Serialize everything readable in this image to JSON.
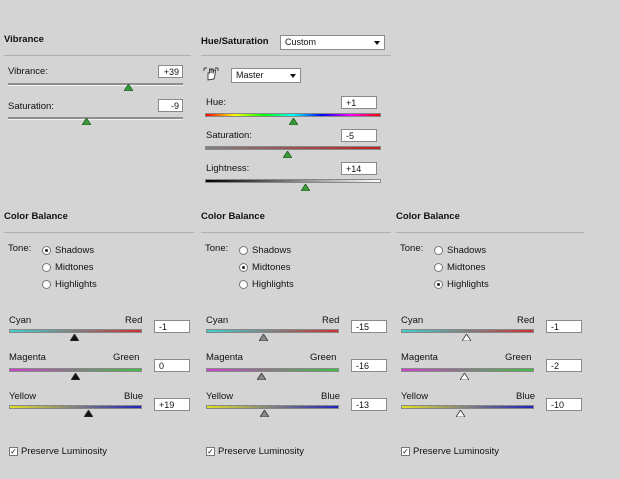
{
  "vibrance": {
    "title": "Vibrance",
    "vibrance_label": "Vibrance:",
    "vibrance_value": "+39",
    "vibrance_level": 0.69,
    "saturation_label": "Saturation:",
    "saturation_value": "-9",
    "saturation_level": 0.45
  },
  "hue_sat": {
    "title": "Hue/Saturation",
    "preset": "Custom",
    "channel": "Master",
    "hue_label": "Hue:",
    "hue_value": "+1",
    "hue_level": 0.5,
    "saturation_label": "Saturation:",
    "saturation_value": "-5",
    "saturation_level": 0.47,
    "lightness_label": "Lightness:",
    "lightness_value": "+14",
    "lightness_level": 0.57
  },
  "color_balance": [
    {
      "title": "Color Balance",
      "tone_label": "Tone:",
      "tones": [
        "Shadows",
        "Midtones",
        "Highlights"
      ],
      "selected_tone": "Shadows",
      "cyan": "Cyan",
      "red": "Red",
      "cr_value": "-1",
      "cr_level": 0.49,
      "magenta": "Magenta",
      "green": "Green",
      "mg_value": "0",
      "mg_level": 0.5,
      "yellow": "Yellow",
      "blue": "Blue",
      "yb_value": "+19",
      "yb_level": 0.6,
      "preserve": "Preserve Luminosity",
      "preserve_checked": true,
      "thumb_color": "#111111"
    },
    {
      "title": "Color Balance",
      "tone_label": "Tone:",
      "tones": [
        "Shadows",
        "Midtones",
        "Highlights"
      ],
      "selected_tone": "Midtones",
      "cyan": "Cyan",
      "red": "Red",
      "cr_value": "-15",
      "cr_level": 0.43,
      "magenta": "Magenta",
      "green": "Green",
      "mg_value": "-16",
      "mg_level": 0.42,
      "yellow": "Yellow",
      "blue": "Blue",
      "yb_value": "-13",
      "yb_level": 0.44,
      "preserve": "Preserve Luminosity",
      "preserve_checked": true,
      "thumb_color": "#8a8a8a"
    },
    {
      "title": "Color Balance",
      "tone_label": "Tone:",
      "tones": [
        "Shadows",
        "Midtones",
        "Highlights"
      ],
      "selected_tone": "Highlights",
      "cyan": "Cyan",
      "red": "Red",
      "cr_value": "-1",
      "cr_level": 0.49,
      "magenta": "Magenta",
      "green": "Green",
      "mg_value": "-2",
      "mg_level": 0.48,
      "yellow": "Yellow",
      "blue": "Blue",
      "yb_value": "-10",
      "yb_level": 0.45,
      "preserve": "Preserve Luminosity",
      "preserve_checked": true,
      "thumb_color": "#ffffff"
    }
  ],
  "colors": {
    "green_thumb": "#3a9a3a",
    "outline": "#333333"
  }
}
